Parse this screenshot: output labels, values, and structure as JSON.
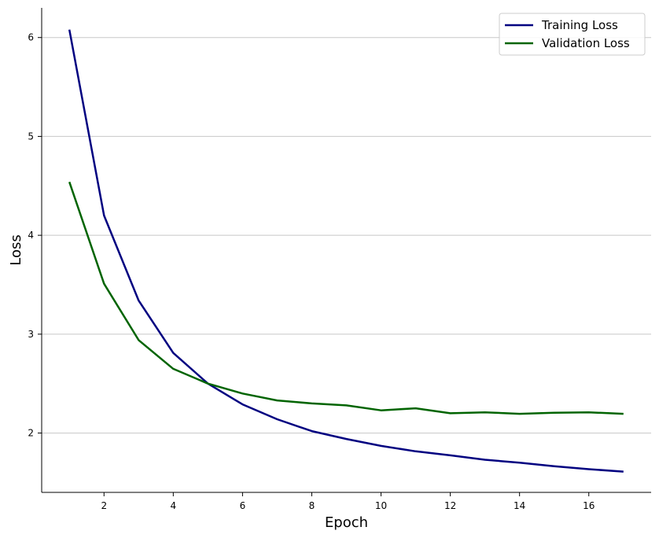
{
  "chart_data": {
    "type": "line",
    "title": "",
    "xlabel": "Epoch",
    "ylabel": "Loss",
    "xlim": [
      0.2,
      17.8
    ],
    "ylim": [
      1.4,
      6.3
    ],
    "xticks": [
      2,
      4,
      6,
      8,
      10,
      12,
      14,
      16
    ],
    "yticks": [
      2,
      3,
      4,
      5,
      6
    ],
    "grid": "horizontal",
    "legend_position": "top-right",
    "x": [
      1,
      2,
      3,
      4,
      5,
      6,
      7,
      8,
      9,
      10,
      11,
      12,
      13,
      14,
      15,
      16,
      17
    ],
    "series": [
      {
        "name": "Training Loss",
        "color": "#000080",
        "values": [
          6.08,
          4.2,
          3.34,
          2.81,
          2.5,
          2.29,
          2.14,
          2.02,
          1.94,
          1.87,
          1.815,
          1.775,
          1.73,
          1.7,
          1.665,
          1.635,
          1.61
        ]
      },
      {
        "name": "Validation Loss",
        "color": "#006400",
        "values": [
          4.54,
          3.51,
          2.94,
          2.65,
          2.5,
          2.4,
          2.33,
          2.3,
          2.28,
          2.23,
          2.25,
          2.2,
          2.21,
          2.195,
          2.205,
          2.21,
          2.195
        ]
      }
    ]
  }
}
